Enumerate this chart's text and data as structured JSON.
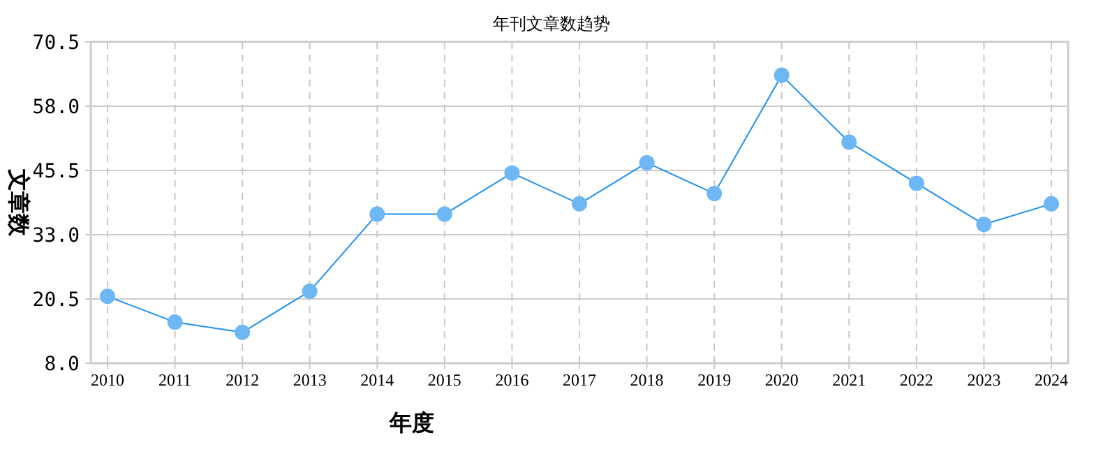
{
  "chart_data": {
    "type": "line",
    "title": "年刊文章数趋势",
    "xlabel": "年度",
    "ylabel": "文章数",
    "categories": [
      "2010",
      "2011",
      "2012",
      "2013",
      "2014",
      "2015",
      "2016",
      "2017",
      "2018",
      "2019",
      "2020",
      "2021",
      "2022",
      "2023",
      "2024"
    ],
    "series": [
      {
        "color": "#1e90f0",
        "values": [
          21,
          16,
          14,
          22,
          37,
          37,
          45,
          39,
          47,
          41,
          64,
          51,
          43,
          35,
          39
        ]
      }
    ],
    "ylim": [
      8.0,
      70.5
    ],
    "yticks": [
      {
        "value": 8,
        "label": "8.0"
      },
      {
        "value": 20.5,
        "label": "20.5"
      },
      {
        "value": 33,
        "label": "33.0"
      },
      {
        "value": 45.5,
        "label": "45.5"
      },
      {
        "value": 58,
        "label": "58.0"
      },
      {
        "value": 70.5,
        "label": "70.5"
      }
    ],
    "grid": true,
    "marker": "circle",
    "line_style": "solid"
  }
}
